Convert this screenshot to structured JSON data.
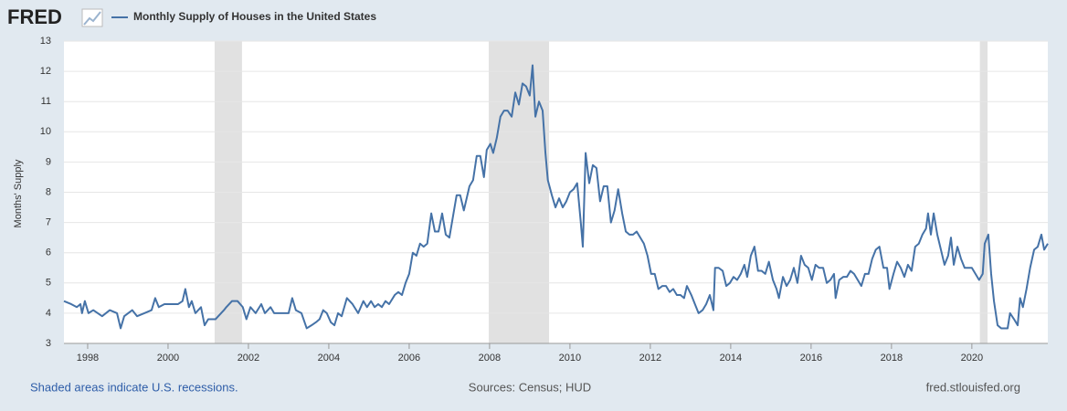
{
  "chart_data": {
    "type": "line",
    "logo": "FRED",
    "y_label": "Months' Supply",
    "note": "Shaded areas indicate U.S. recessions.",
    "source": "Sources: Census; HUD",
    "site": "fred.stlouisfed.org",
    "xlim": [
      1997.41,
      2021.89
    ],
    "xticks": [
      1998,
      2000,
      2002,
      2004,
      2006,
      2008,
      2010,
      2012,
      2014,
      2016,
      2018,
      2020
    ],
    "ylim": [
      3,
      13
    ],
    "yticks": [
      3,
      4,
      5,
      6,
      7,
      8,
      9,
      10,
      11,
      12,
      13
    ],
    "grid": true,
    "recessions": [
      [
        2001.16,
        2001.84
      ],
      [
        2007.98,
        2009.48
      ],
      [
        2020.2,
        2020.39
      ]
    ],
    "x": [
      1997.41,
      1997.59,
      1997.73,
      1997.82,
      1997.86,
      1997.93,
      1998.02,
      1998.14,
      1998.36,
      1998.55,
      1998.73,
      1998.82,
      1998.91,
      1999.11,
      1999.23,
      1999.41,
      1999.59,
      1999.68,
      1999.77,
      1999.91,
      2000.25,
      2000.36,
      2000.43,
      2000.52,
      2000.59,
      2000.68,
      2000.82,
      2000.91,
      2001.0,
      2001.18,
      2001.39,
      2001.45,
      2001.59,
      2001.73,
      2001.86,
      2001.95,
      2002.05,
      2002.18,
      2002.32,
      2002.41,
      2002.55,
      2002.64,
      2002.77,
      2003.0,
      2003.09,
      2003.18,
      2003.32,
      2003.45,
      2003.57,
      2003.68,
      2003.77,
      2003.86,
      2003.95,
      2004.05,
      2004.14,
      2004.23,
      2004.32,
      2004.45,
      2004.59,
      2004.73,
      2004.86,
      2004.95,
      2005.05,
      2005.14,
      2005.23,
      2005.32,
      2005.41,
      2005.5,
      2005.64,
      2005.73,
      2005.82,
      2005.91,
      2006.0,
      2006.09,
      2006.18,
      2006.27,
      2006.36,
      2006.45,
      2006.55,
      2006.64,
      2006.73,
      2006.82,
      2006.91,
      2007.0,
      2007.09,
      2007.18,
      2007.27,
      2007.36,
      2007.5,
      2007.59,
      2007.68,
      2007.77,
      2007.86,
      2007.93,
      2008.02,
      2008.09,
      2008.18,
      2008.27,
      2008.36,
      2008.45,
      2008.55,
      2008.64,
      2008.73,
      2008.82,
      2008.91,
      2009.0,
      2009.07,
      2009.14,
      2009.23,
      2009.32,
      2009.39,
      2009.45,
      2009.55,
      2009.64,
      2009.73,
      2009.82,
      2009.91,
      2010.0,
      2010.09,
      2010.18,
      2010.27,
      2010.32,
      2010.39,
      2010.48,
      2010.57,
      2010.66,
      2010.75,
      2010.84,
      2010.93,
      2011.02,
      2011.11,
      2011.2,
      2011.3,
      2011.39,
      2011.48,
      2011.57,
      2011.66,
      2011.75,
      2011.84,
      2011.93,
      2012.02,
      2012.11,
      2012.2,
      2012.3,
      2012.39,
      2012.48,
      2012.57,
      2012.66,
      2012.75,
      2012.84,
      2012.91,
      2013.02,
      2013.11,
      2013.2,
      2013.3,
      2013.39,
      2013.48,
      2013.57,
      2013.61,
      2013.7,
      2013.8,
      2013.89,
      2013.98,
      2014.07,
      2014.16,
      2014.25,
      2014.34,
      2014.41,
      2014.5,
      2014.59,
      2014.68,
      2014.77,
      2014.86,
      2014.95,
      2015.05,
      2015.14,
      2015.2,
      2015.3,
      2015.39,
      2015.48,
      2015.57,
      2015.66,
      2015.75,
      2015.84,
      2015.93,
      2016.02,
      2016.11,
      2016.2,
      2016.3,
      2016.39,
      2016.48,
      2016.57,
      2016.61,
      2016.7,
      2016.8,
      2016.89,
      2016.98,
      2017.07,
      2017.16,
      2017.25,
      2017.34,
      2017.43,
      2017.52,
      2017.61,
      2017.7,
      2017.8,
      2017.89,
      2017.95,
      2018.05,
      2018.14,
      2018.23,
      2018.32,
      2018.41,
      2018.5,
      2018.59,
      2018.68,
      2018.77,
      2018.86,
      2018.91,
      2018.98,
      2019.05,
      2019.14,
      2019.23,
      2019.32,
      2019.41,
      2019.48,
      2019.55,
      2019.64,
      2019.73,
      2019.82,
      2019.91,
      2020.0,
      2020.09,
      2020.18,
      2020.27,
      2020.32,
      2020.41,
      2020.48,
      2020.55,
      2020.64,
      2020.73,
      2020.82,
      2020.89,
      2020.95,
      2021.05,
      2021.14,
      2021.2,
      2021.27,
      2021.36,
      2021.45,
      2021.55,
      2021.64,
      2021.73,
      2021.8,
      2021.89
    ],
    "series": [
      {
        "name": "Monthly Supply of Houses in the United States",
        "color": "#4572a7",
        "values": [
          4.4,
          4.3,
          4.2,
          4.3,
          4.0,
          4.4,
          4.0,
          4.1,
          3.9,
          4.1,
          4.0,
          3.5,
          3.9,
          4.1,
          3.9,
          4.0,
          4.1,
          4.5,
          4.2,
          4.3,
          4.3,
          4.4,
          4.8,
          4.2,
          4.4,
          4.0,
          4.2,
          3.6,
          3.8,
          3.8,
          4.1,
          4.2,
          4.4,
          4.4,
          4.2,
          3.8,
          4.2,
          4.0,
          4.3,
          4.0,
          4.2,
          4.0,
          4.0,
          4.0,
          4.5,
          4.1,
          4.0,
          3.5,
          3.6,
          3.7,
          3.8,
          4.1,
          4.0,
          3.7,
          3.6,
          4.0,
          3.9,
          4.5,
          4.3,
          4.0,
          4.4,
          4.2,
          4.4,
          4.2,
          4.3,
          4.2,
          4.4,
          4.3,
          4.6,
          4.7,
          4.6,
          5.0,
          5.3,
          6.0,
          5.9,
          6.3,
          6.2,
          6.3,
          7.3,
          6.7,
          6.7,
          7.3,
          6.6,
          6.5,
          7.2,
          7.9,
          7.9,
          7.4,
          8.2,
          8.4,
          9.2,
          9.2,
          8.5,
          9.4,
          9.6,
          9.3,
          9.8,
          10.5,
          10.7,
          10.7,
          10.5,
          11.3,
          10.9,
          11.6,
          11.5,
          11.2,
          12.2,
          10.5,
          11.0,
          10.7,
          9.3,
          8.4,
          7.9,
          7.5,
          7.8,
          7.5,
          7.7,
          8.0,
          8.1,
          8.3,
          7.0,
          6.2,
          9.3,
          8.3,
          8.9,
          8.8,
          7.7,
          8.2,
          8.2,
          7.0,
          7.4,
          8.1,
          7.3,
          6.7,
          6.6,
          6.6,
          6.7,
          6.5,
          6.3,
          5.9,
          5.3,
          5.3,
          4.8,
          4.9,
          4.9,
          4.7,
          4.8,
          4.6,
          4.6,
          4.5,
          4.9,
          4.6,
          4.3,
          4.0,
          4.1,
          4.3,
          4.6,
          4.1,
          5.5,
          5.5,
          5.4,
          4.9,
          5.0,
          5.2,
          5.1,
          5.3,
          5.6,
          5.2,
          5.9,
          6.2,
          5.4,
          5.4,
          5.3,
          5.7,
          5.1,
          4.8,
          4.5,
          5.2,
          4.9,
          5.1,
          5.5,
          5.0,
          5.9,
          5.6,
          5.5,
          5.1,
          5.6,
          5.5,
          5.5,
          5.0,
          5.1,
          5.3,
          4.5,
          5.1,
          5.2,
          5.2,
          5.4,
          5.3,
          5.1,
          4.9,
          5.3,
          5.3,
          5.8,
          6.1,
          6.2,
          5.5,
          5.5,
          4.8,
          5.3,
          5.7,
          5.5,
          5.2,
          5.6,
          5.4,
          6.2,
          6.3,
          6.6,
          6.8,
          7.3,
          6.6,
          7.3,
          6.6,
          6.1,
          5.6,
          5.9,
          6.5,
          5.6,
          6.2,
          5.8,
          5.5,
          5.5,
          5.5,
          5.3,
          5.1,
          5.3,
          6.3,
          6.6,
          5.3,
          4.4,
          3.6,
          3.5,
          3.5,
          3.5,
          4.0,
          3.8,
          3.6,
          4.5,
          4.2,
          4.8,
          5.5,
          6.1,
          6.2,
          6.6,
          6.1,
          6.3
        ]
      }
    ]
  }
}
